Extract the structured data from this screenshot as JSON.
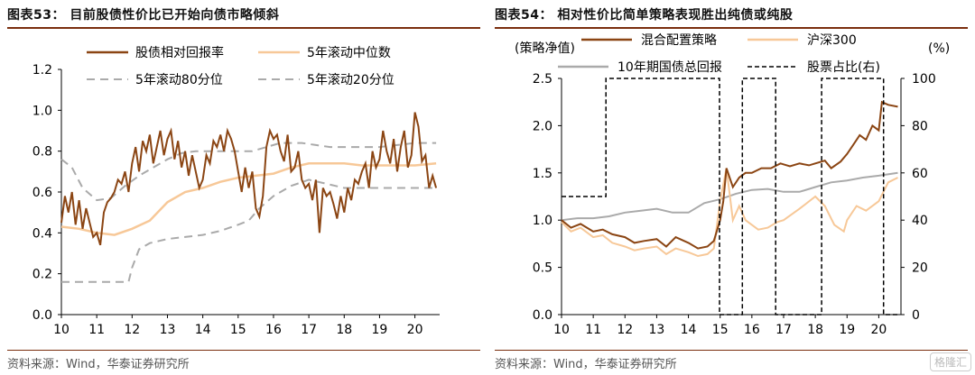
{
  "colors": {
    "brown": "#8b4513",
    "peach": "#f7c898",
    "gray": "#aaaaaa",
    "black": "#000000",
    "title_rule": "#7a2e0e"
  },
  "left": {
    "title": "图表53： 目前股债性价比已开始向债市略倾斜",
    "source": "资料来源：Wind，华泰证券研究所"
  },
  "right": {
    "title": "图表54： 相对性价比简单策略表现胜出纯债或纯股",
    "source": "资料来源：Wind，华泰证券研究所",
    "left_axis_label": "(策略净值)",
    "right_axis_label": "(%)"
  },
  "watermark": "格隆汇",
  "chart_data": [
    {
      "type": "line",
      "title": "",
      "xlabel": "",
      "ylabel": "",
      "x_ticks": [
        "10",
        "11",
        "12",
        "13",
        "14",
        "15",
        "16",
        "17",
        "18",
        "19",
        "20"
      ],
      "x_range": [
        2010,
        2020.7
      ],
      "ylim": [
        0.0,
        1.2
      ],
      "y_ticks": [
        "0.0",
        "0.2",
        "0.4",
        "0.6",
        "0.8",
        "1.0",
        "1.2"
      ],
      "grid": false,
      "legend": "top",
      "series": [
        {
          "name": "股债相对回报率",
          "style": "solid",
          "color": "#8b4513",
          "x": [
            2010.0,
            2010.1,
            2010.2,
            2010.3,
            2010.4,
            2010.5,
            2010.6,
            2010.7,
            2010.8,
            2010.9,
            2011.0,
            2011.1,
            2011.2,
            2011.3,
            2011.4,
            2011.5,
            2011.6,
            2011.7,
            2011.8,
            2011.9,
            2012.0,
            2012.1,
            2012.2,
            2012.3,
            2012.4,
            2012.5,
            2012.6,
            2012.7,
            2012.8,
            2012.9,
            2013.0,
            2013.1,
            2013.2,
            2013.3,
            2013.4,
            2013.5,
            2013.6,
            2013.7,
            2013.8,
            2013.9,
            2014.0,
            2014.1,
            2014.2,
            2014.3,
            2014.4,
            2014.5,
            2014.6,
            2014.7,
            2014.8,
            2014.9,
            2015.0,
            2015.1,
            2015.2,
            2015.3,
            2015.4,
            2015.5,
            2015.6,
            2015.7,
            2015.8,
            2015.9,
            2016.0,
            2016.1,
            2016.2,
            2016.3,
            2016.4,
            2016.5,
            2016.6,
            2016.7,
            2016.8,
            2016.9,
            2017.0,
            2017.1,
            2017.2,
            2017.3,
            2017.4,
            2017.5,
            2017.6,
            2017.7,
            2017.8,
            2017.9,
            2018.0,
            2018.1,
            2018.2,
            2018.3,
            2018.4,
            2018.5,
            2018.6,
            2018.7,
            2018.8,
            2018.9,
            2019.0,
            2019.1,
            2019.2,
            2019.3,
            2019.4,
            2019.5,
            2019.6,
            2019.7,
            2019.8,
            2019.9,
            2020.0,
            2020.1,
            2020.2,
            2020.3,
            2020.4,
            2020.5,
            2020.6
          ],
          "y": [
            0.45,
            0.58,
            0.5,
            0.6,
            0.44,
            0.56,
            0.42,
            0.52,
            0.45,
            0.38,
            0.4,
            0.34,
            0.5,
            0.55,
            0.57,
            0.6,
            0.66,
            0.64,
            0.7,
            0.6,
            0.74,
            0.82,
            0.7,
            0.85,
            0.8,
            0.88,
            0.74,
            0.82,
            0.9,
            0.78,
            0.86,
            0.9,
            0.76,
            0.85,
            0.72,
            0.8,
            0.68,
            0.78,
            0.7,
            0.62,
            0.66,
            0.78,
            0.74,
            0.85,
            0.82,
            0.88,
            0.8,
            0.9,
            0.86,
            0.8,
            0.7,
            0.6,
            0.72,
            0.62,
            0.7,
            0.52,
            0.48,
            0.58,
            0.82,
            0.9,
            0.86,
            0.88,
            0.8,
            0.75,
            0.88,
            0.7,
            0.72,
            0.8,
            0.66,
            0.62,
            0.64,
            0.56,
            0.66,
            0.4,
            0.62,
            0.58,
            0.6,
            0.54,
            0.47,
            0.58,
            0.5,
            0.62,
            0.56,
            0.66,
            0.64,
            0.7,
            0.74,
            0.62,
            0.8,
            0.72,
            0.76,
            0.9,
            0.8,
            0.74,
            0.86,
            0.7,
            0.82,
            0.9,
            0.72,
            0.78,
            0.99,
            0.92,
            0.75,
            0.78,
            0.62,
            0.68,
            0.62
          ]
        },
        {
          "name": "5年滚动中位数",
          "style": "solid",
          "color": "#f7c898",
          "x": [
            2010.0,
            2010.5,
            2011.0,
            2011.5,
            2012.0,
            2012.5,
            2013.0,
            2013.5,
            2014.0,
            2014.5,
            2015.0,
            2015.5,
            2016.0,
            2016.5,
            2017.0,
            2017.5,
            2018.0,
            2018.5,
            2019.0,
            2019.5,
            2020.0,
            2020.6
          ],
          "y": [
            0.43,
            0.42,
            0.4,
            0.39,
            0.42,
            0.46,
            0.55,
            0.6,
            0.62,
            0.65,
            0.67,
            0.68,
            0.69,
            0.72,
            0.74,
            0.74,
            0.74,
            0.73,
            0.73,
            0.73,
            0.73,
            0.74
          ]
        },
        {
          "name": "5年滚动80分位",
          "style": "dashed",
          "color": "#aaaaaa",
          "x": [
            2010.0,
            2010.3,
            2010.6,
            2011.0,
            2011.4,
            2011.8,
            2012.2,
            2012.6,
            2013.0,
            2013.4,
            2013.8,
            2014.2,
            2014.6,
            2015.0,
            2015.4,
            2015.8,
            2016.2,
            2016.8,
            2017.2,
            2017.6,
            2018.0,
            2018.5,
            2019.0,
            2019.5,
            2020.0,
            2020.6
          ],
          "y": [
            0.76,
            0.72,
            0.62,
            0.56,
            0.57,
            0.63,
            0.68,
            0.72,
            0.76,
            0.79,
            0.8,
            0.8,
            0.8,
            0.8,
            0.8,
            0.82,
            0.84,
            0.84,
            0.83,
            0.82,
            0.82,
            0.82,
            0.82,
            0.83,
            0.84,
            0.84
          ]
        },
        {
          "name": "5年滚动20分位",
          "style": "dashed",
          "color": "#aaaaaa",
          "x": [
            2010.0,
            2011.0,
            2011.9,
            2012.0,
            2012.2,
            2012.5,
            2013.0,
            2013.5,
            2014.0,
            2014.5,
            2015.0,
            2015.3,
            2015.6,
            2016.0,
            2016.5,
            2017.0,
            2017.5,
            2018.0,
            2018.5,
            2019.0,
            2019.5,
            2020.0,
            2020.6
          ],
          "y": [
            0.16,
            0.16,
            0.16,
            0.23,
            0.32,
            0.35,
            0.37,
            0.38,
            0.39,
            0.41,
            0.44,
            0.46,
            0.52,
            0.58,
            0.63,
            0.66,
            0.64,
            0.62,
            0.62,
            0.62,
            0.62,
            0.62,
            0.62
          ]
        }
      ]
    },
    {
      "type": "line",
      "title": "",
      "x_ticks": [
        "10",
        "11",
        "12",
        "13",
        "14",
        "15",
        "16",
        "17",
        "18",
        "19",
        "20"
      ],
      "x_range": [
        2010,
        2020.7
      ],
      "ylim_left": [
        0.0,
        2.5
      ],
      "y_ticks_left": [
        "0.0",
        "0.5",
        "1.0",
        "1.5",
        "2.0",
        "2.5"
      ],
      "ylim_right": [
        0,
        100
      ],
      "y_ticks_right": [
        "0",
        "20",
        "40",
        "60",
        "80",
        "100"
      ],
      "grid": false,
      "legend": "top",
      "series": [
        {
          "name": "混合配置策略",
          "axis": "left",
          "style": "solid",
          "color": "#8b4513",
          "x": [
            2010.0,
            2010.3,
            2010.6,
            2011.0,
            2011.3,
            2011.6,
            2012.0,
            2012.3,
            2012.6,
            2013.0,
            2013.3,
            2013.6,
            2014.0,
            2014.3,
            2014.6,
            2014.8,
            2015.0,
            2015.1,
            2015.2,
            2015.4,
            2015.6,
            2015.8,
            2016.0,
            2016.3,
            2016.6,
            2016.9,
            2017.2,
            2017.5,
            2017.8,
            2018.0,
            2018.3,
            2018.5,
            2018.8,
            2019.0,
            2019.2,
            2019.4,
            2019.6,
            2019.8,
            2020.0,
            2020.1,
            2020.3,
            2020.6
          ],
          "y": [
            1.0,
            0.92,
            0.96,
            0.88,
            0.9,
            0.85,
            0.82,
            0.76,
            0.78,
            0.8,
            0.72,
            0.82,
            0.76,
            0.7,
            0.72,
            0.78,
            1.0,
            1.2,
            1.55,
            1.35,
            1.45,
            1.5,
            1.5,
            1.55,
            1.55,
            1.6,
            1.57,
            1.6,
            1.58,
            1.6,
            1.63,
            1.55,
            1.62,
            1.7,
            1.8,
            1.9,
            1.85,
            2.0,
            1.95,
            2.25,
            2.22,
            2.2
          ]
        },
        {
          "name": "沪深300",
          "axis": "left",
          "style": "solid",
          "color": "#f7c898",
          "x": [
            2010.0,
            2010.3,
            2010.6,
            2011.0,
            2011.3,
            2011.6,
            2012.0,
            2012.3,
            2012.6,
            2013.0,
            2013.3,
            2013.6,
            2014.0,
            2014.3,
            2014.6,
            2014.8,
            2015.0,
            2015.2,
            2015.4,
            2015.6,
            2015.8,
            2016.0,
            2016.2,
            2016.5,
            2016.8,
            2017.0,
            2017.5,
            2018.0,
            2018.3,
            2018.6,
            2018.9,
            2019.0,
            2019.3,
            2019.6,
            2020.0,
            2020.3,
            2020.6
          ],
          "y": [
            0.98,
            0.88,
            0.92,
            0.82,
            0.84,
            0.76,
            0.72,
            0.68,
            0.7,
            0.72,
            0.64,
            0.7,
            0.66,
            0.62,
            0.64,
            0.7,
            1.2,
            1.55,
            1.0,
            1.15,
            1.0,
            0.95,
            0.9,
            0.92,
            0.98,
            1.0,
            1.12,
            1.25,
            1.15,
            0.95,
            0.88,
            1.0,
            1.15,
            1.1,
            1.2,
            1.4,
            1.45
          ]
        },
        {
          "name": "10年期国债总回报",
          "axis": "left",
          "style": "solid",
          "color": "#aaaaaa",
          "x": [
            2010.0,
            2010.5,
            2011.0,
            2011.5,
            2012.0,
            2012.5,
            2013.0,
            2013.5,
            2014.0,
            2014.5,
            2015.0,
            2015.5,
            2016.0,
            2016.5,
            2017.0,
            2017.5,
            2018.0,
            2018.5,
            2019.0,
            2019.5,
            2020.0,
            2020.6
          ],
          "y": [
            1.0,
            1.02,
            1.02,
            1.04,
            1.08,
            1.1,
            1.12,
            1.08,
            1.08,
            1.18,
            1.22,
            1.28,
            1.32,
            1.33,
            1.3,
            1.3,
            1.35,
            1.4,
            1.42,
            1.45,
            1.47,
            1.5
          ]
        },
        {
          "name": "股票占比(右)",
          "axis": "right",
          "style": "dashed",
          "color": "#000000",
          "x": [
            2010.0,
            2011.4,
            2011.4,
            2014.98,
            2014.98,
            2015.7,
            2015.7,
            2016.75,
            2016.75,
            2018.2,
            2018.2,
            2020.15,
            2020.15,
            2020.6
          ],
          "y": [
            50,
            50,
            100,
            100,
            0,
            0,
            100,
            100,
            0,
            0,
            100,
            100,
            0,
            0
          ]
        }
      ]
    }
  ]
}
